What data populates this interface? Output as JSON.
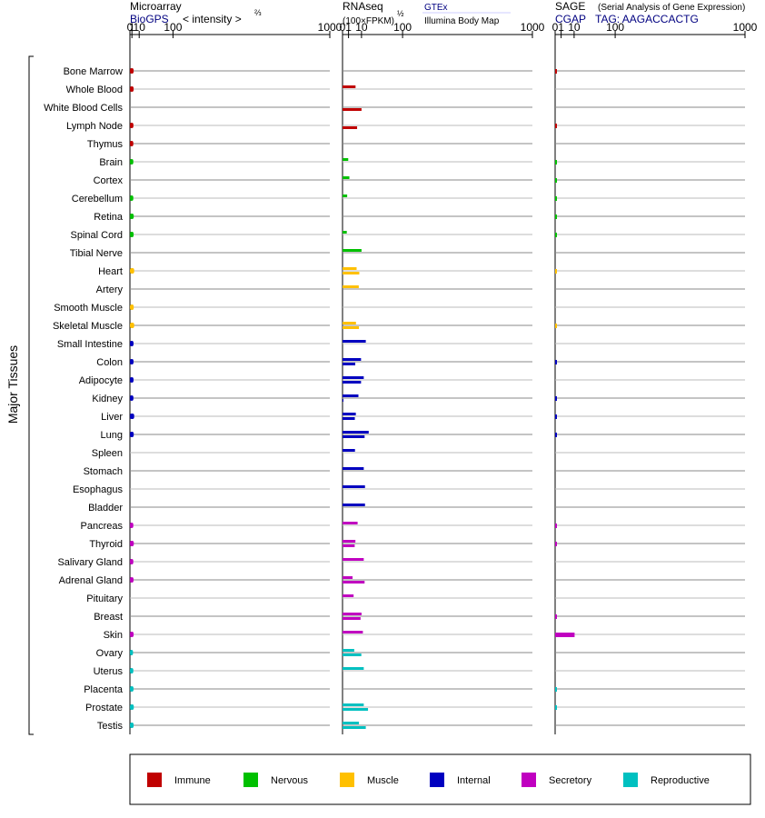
{
  "panels": {
    "microarray": {
      "title": "Microarray",
      "source": "BioGPS",
      "scale_label": "< intensity >",
      "scale_exp": "⅔"
    },
    "rnaseq": {
      "title": "RNAseq",
      "unit": "(100×FPKM)",
      "unit_exp": "½",
      "source1": "GTEx",
      "source2": "Illumina Body Map"
    },
    "sage": {
      "title": "SAGE",
      "subtitle": "(Serial Analysis of Gene Expression)",
      "source": "CGAP",
      "tag": "TAG: AAGACCACTG"
    }
  },
  "y_group_label": "Major Tissues",
  "legend": [
    {
      "label": "Immune",
      "color": "#c00000"
    },
    {
      "label": "Nervous",
      "color": "#00c000"
    },
    {
      "label": "Muscle",
      "color": "#ffc000"
    },
    {
      "label": "Internal",
      "color": "#0000c0"
    },
    {
      "label": "Secretory",
      "color": "#c000c0"
    },
    {
      "label": "Reproductive",
      "color": "#00c0c0"
    }
  ],
  "chart_data": {
    "type": "bar",
    "orientation": "horizontal",
    "xscale": "root",
    "xticks": [
      0,
      1,
      10,
      100,
      1000
    ],
    "xlim": [
      0,
      1000
    ],
    "tissues": [
      {
        "name": "Bone Marrow",
        "group": "Immune",
        "microarray": 2.5,
        "gtex": null,
        "ibm": null,
        "sage": 0.01
      },
      {
        "name": "Whole Blood",
        "group": "Immune",
        "microarray": 2.5,
        "gtex": 4.7,
        "ibm": null,
        "sage": null
      },
      {
        "name": "White Blood Cells",
        "group": "Immune",
        "microarray": null,
        "gtex": null,
        "ibm": 10,
        "sage": null
      },
      {
        "name": "Lymph Node",
        "group": "Immune",
        "microarray": 2.3,
        "gtex": null,
        "ibm": 5.9,
        "sage": 0.01
      },
      {
        "name": "Thymus",
        "group": "Immune",
        "microarray": 2.2,
        "gtex": null,
        "ibm": null,
        "sage": null
      },
      {
        "name": "Brain",
        "group": "Nervous",
        "microarray": 2.2,
        "gtex": 0.9,
        "ibm": null,
        "sage": 0.01
      },
      {
        "name": "Cortex",
        "group": "Nervous",
        "microarray": null,
        "gtex": 1.3,
        "ibm": null,
        "sage": 0.01
      },
      {
        "name": "Cerebellum",
        "group": "Nervous",
        "microarray": 2.2,
        "gtex": 0.6,
        "ibm": null,
        "sage": 0.01
      },
      {
        "name": "Retina",
        "group": "Nervous",
        "microarray": 2.6,
        "gtex": null,
        "ibm": null,
        "sage": 0.01
      },
      {
        "name": "Spinal Cord",
        "group": "Nervous",
        "microarray": 2.5,
        "gtex": 0.5,
        "ibm": null,
        "sage": 0.01
      },
      {
        "name": "Tibial Nerve",
        "group": "Nervous",
        "microarray": null,
        "gtex": 10,
        "ibm": null,
        "sage": null
      },
      {
        "name": "Heart",
        "group": "Muscle",
        "microarray": 3.1,
        "gtex": 5.5,
        "ibm": 7.8,
        "sage": 0.01
      },
      {
        "name": "Artery",
        "group": "Muscle",
        "microarray": null,
        "gtex": 7.3,
        "ibm": null,
        "sage": null
      },
      {
        "name": "Smooth Muscle",
        "group": "Muscle",
        "microarray": 2.6,
        "gtex": null,
        "ibm": null,
        "sage": null
      },
      {
        "name": "Skeletal Muscle",
        "group": "Muscle",
        "microarray": 3.1,
        "gtex": 5,
        "ibm": 7.5,
        "sage": 0.01
      },
      {
        "name": "Small Intestine",
        "group": "Internal",
        "microarray": 2.4,
        "gtex": 15,
        "ibm": null,
        "sage": null
      },
      {
        "name": "Colon",
        "group": "Internal",
        "microarray": 2.4,
        "gtex": 9.5,
        "ibm": 4.5,
        "sage": 0.01
      },
      {
        "name": "Adipocyte",
        "group": "Internal",
        "microarray": 2.4,
        "gtex": 12.5,
        "ibm": 9.5,
        "sage": null
      },
      {
        "name": "Kidney",
        "group": "Internal",
        "microarray": 2.3,
        "gtex": 7,
        "ibm": 0.01,
        "sage": 0.01
      },
      {
        "name": "Liver",
        "group": "Internal",
        "microarray": 3.1,
        "gtex": 4.9,
        "ibm": 4.2,
        "sage": 0.01
      },
      {
        "name": "Lung",
        "group": "Internal",
        "microarray": 2.6,
        "gtex": 19,
        "ibm": 13.5,
        "sage": 0.01
      },
      {
        "name": "Spleen",
        "group": "Internal",
        "microarray": null,
        "gtex": 4.3,
        "ibm": null,
        "sage": null
      },
      {
        "name": "Stomach",
        "group": "Internal",
        "microarray": null,
        "gtex": 12.5,
        "ibm": null,
        "sage": null
      },
      {
        "name": "Esophagus",
        "group": "Internal",
        "microarray": null,
        "gtex": 14,
        "ibm": null,
        "sage": null
      },
      {
        "name": "Bladder",
        "group": "Internal",
        "microarray": null,
        "gtex": 14,
        "ibm": null,
        "sage": null
      },
      {
        "name": "Pancreas",
        "group": "Secretory",
        "microarray": 2.2,
        "gtex": 6.3,
        "ibm": null,
        "sage": 0.01
      },
      {
        "name": "Thyroid",
        "group": "Secretory",
        "microarray": 2.7,
        "gtex": 4.6,
        "ibm": 4.1,
        "sage": 0.01
      },
      {
        "name": "Salivary Gland",
        "group": "Secretory",
        "microarray": 2.2,
        "gtex": 12.5,
        "ibm": null,
        "sage": null
      },
      {
        "name": "Adrenal Gland",
        "group": "Secretory",
        "microarray": 2.4,
        "gtex": 2.8,
        "ibm": 13.5,
        "sage": null
      },
      {
        "name": "Pituitary",
        "group": "Secretory",
        "microarray": null,
        "gtex": 3.4,
        "ibm": null,
        "sage": null
      },
      {
        "name": "Breast",
        "group": "Secretory",
        "microarray": null,
        "gtex": 10,
        "ibm": 9,
        "sage": 0.01
      },
      {
        "name": "Skin",
        "group": "Secretory",
        "microarray": 2.5,
        "gtex": 11.5,
        "ibm": null,
        "sage": 10.5
      },
      {
        "name": "Ovary",
        "group": "Reproductive",
        "microarray": 1.9,
        "gtex": 3.8,
        "ibm": 9.8,
        "sage": null
      },
      {
        "name": "Uterus",
        "group": "Reproductive",
        "microarray": 2.2,
        "gtex": 12.5,
        "ibm": null,
        "sage": null
      },
      {
        "name": "Placenta",
        "group": "Reproductive",
        "microarray": 2.4,
        "gtex": null,
        "ibm": null,
        "sage": 0.01
      },
      {
        "name": "Prostate",
        "group": "Reproductive",
        "microarray": 2.7,
        "gtex": 12.5,
        "ibm": 18,
        "sage": 0.01
      },
      {
        "name": "Testis",
        "group": "Reproductive",
        "microarray": 2.5,
        "gtex": 7.5,
        "ibm": 15,
        "sage": null
      }
    ]
  }
}
